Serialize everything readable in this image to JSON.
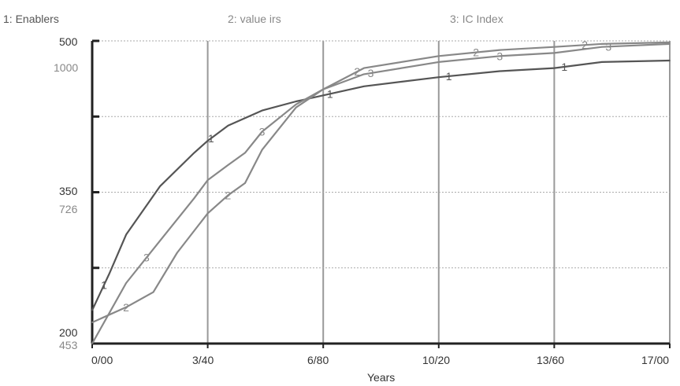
{
  "chart_data": {
    "type": "line",
    "xlabel": "Years",
    "x_tick_labels": [
      "0/00",
      "3/40",
      "6/80",
      "10/20",
      "13/60",
      "17/00"
    ],
    "xlim": [
      0,
      17
    ],
    "y_axes": [
      {
        "series": "1",
        "range": [
          200,
          500
        ],
        "tick_labels": [
          "500",
          "350",
          "200"
        ]
      },
      {
        "series": "2",
        "range": [
          453,
          1000
        ],
        "tick_labels": [
          "1000",
          "726",
          "453"
        ]
      }
    ],
    "grid": true,
    "legend": [
      {
        "label": "1: Enablers",
        "color": "#555555"
      },
      {
        "label": "2: value irs",
        "color": "#888888"
      },
      {
        "label": "3: IC Index",
        "color": "#888888"
      }
    ],
    "series": [
      {
        "name": "1: Enablers",
        "id": "1",
        "color": "#555555",
        "x": [
          0,
          0.5,
          1,
          2,
          3,
          3.4,
          4,
          5,
          6,
          6.8,
          8,
          10.2,
          12,
          13.6,
          15,
          17
        ],
        "norm": [
          0.11,
          0.23,
          0.36,
          0.52,
          0.63,
          0.67,
          0.72,
          0.77,
          0.8,
          0.82,
          0.85,
          0.88,
          0.9,
          0.91,
          0.93,
          0.935
        ]
      },
      {
        "name": "2: value irs",
        "id": "2",
        "color": "#888888",
        "x": [
          0,
          1,
          1.8,
          2.5,
          3.4,
          4,
          4.5,
          5,
          6,
          6.8,
          8,
          10.2,
          12,
          13.6,
          15,
          17
        ],
        "norm": [
          0.07,
          0.12,
          0.17,
          0.3,
          0.43,
          0.49,
          0.53,
          0.64,
          0.78,
          0.84,
          0.91,
          0.95,
          0.97,
          0.98,
          0.99,
          0.995
        ]
      },
      {
        "name": "3: IC Index",
        "id": "3",
        "color": "#888888",
        "x": [
          0,
          1,
          2,
          3,
          3.4,
          4,
          4.5,
          5,
          6,
          6.8,
          8,
          10.2,
          12,
          13.6,
          15,
          17
        ],
        "norm": [
          0.0,
          0.2,
          0.34,
          0.48,
          0.54,
          0.59,
          0.63,
          0.7,
          0.79,
          0.84,
          0.89,
          0.93,
          0.95,
          0.96,
          0.98,
          0.99
        ]
      }
    ],
    "curve_labels": [
      {
        "id": "1",
        "x": [
          0.35,
          3.5,
          7.0,
          10.5,
          13.9
        ]
      },
      {
        "id": "2",
        "x": [
          1.0,
          4.0,
          7.8,
          11.3,
          14.5
        ]
      },
      {
        "id": "3",
        "x": [
          1.6,
          5.0,
          8.2,
          12.0,
          15.2
        ]
      }
    ]
  }
}
